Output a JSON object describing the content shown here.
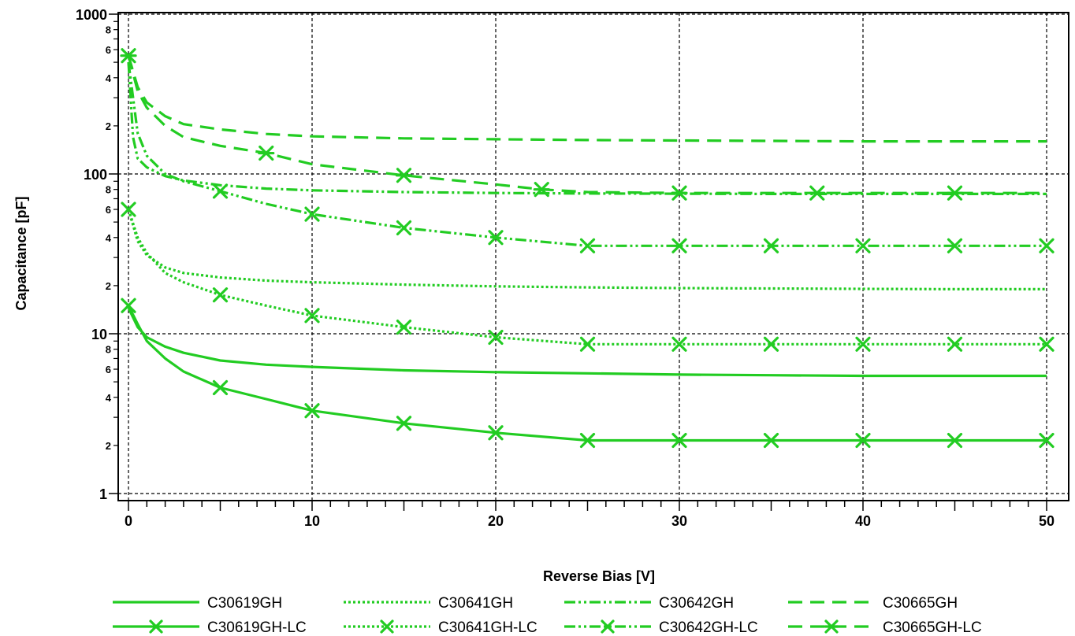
{
  "chart_data": {
    "type": "line",
    "xlabel": "Reverse Bias [V]",
    "ylabel": "Capacitance [pF]",
    "xlim": [
      0,
      50
    ],
    "ylim": [
      1,
      1000
    ],
    "yscale": "log",
    "x_ticks": [
      "0",
      "10",
      "20",
      "30",
      "40",
      "50"
    ],
    "y_major_ticks": [
      "1",
      "10",
      "100",
      "1000"
    ],
    "y_minor_labels": [
      "2",
      "4",
      "6",
      "8"
    ],
    "grid": true,
    "legend_position": "bottom",
    "color": "#22cc22",
    "series": [
      {
        "name": "C30619GH",
        "style": "solid",
        "marker": false,
        "x": [
          0,
          0.5,
          1,
          2,
          3,
          5,
          7.5,
          10,
          15,
          20,
          25,
          30,
          35,
          40,
          45,
          50
        ],
        "y": [
          14.5,
          11,
          9.5,
          8.3,
          7.6,
          6.8,
          6.4,
          6.2,
          5.9,
          5.75,
          5.65,
          5.55,
          5.5,
          5.45,
          5.45,
          5.45
        ]
      },
      {
        "name": "C30619GH-LC",
        "style": "solid",
        "marker": true,
        "x": [
          0,
          0.5,
          1,
          2,
          3,
          5,
          7.5,
          10,
          15,
          20,
          25,
          30,
          35,
          40,
          45,
          50
        ],
        "y": [
          15,
          11.5,
          9,
          7,
          5.8,
          4.6,
          3.9,
          3.3,
          2.75,
          2.4,
          2.15,
          2.15,
          2.15,
          2.15,
          2.15,
          2.15
        ],
        "markers_x": [
          0,
          5,
          10,
          15,
          20,
          25,
          30,
          35,
          40,
          45,
          50
        ]
      },
      {
        "name": "C30641GH",
        "style": "dotted",
        "marker": false,
        "x": [
          0,
          0.5,
          1,
          2,
          3,
          5,
          7.5,
          10,
          15,
          20,
          25,
          30,
          35,
          40,
          45,
          50
        ],
        "y": [
          60,
          38,
          31,
          26,
          24,
          22.5,
          21.5,
          21,
          20.3,
          19.8,
          19.5,
          19.3,
          19.2,
          19.1,
          19,
          19
        ]
      },
      {
        "name": "C30641GH-LC",
        "style": "dotted",
        "marker": true,
        "x": [
          0,
          0.5,
          1,
          2,
          3,
          5,
          7.5,
          10,
          15,
          20,
          25,
          30,
          35,
          40,
          45,
          50
        ],
        "y": [
          60,
          40,
          32,
          24,
          21,
          17.5,
          15,
          13,
          11,
          9.5,
          8.6,
          8.6,
          8.6,
          8.6,
          8.6,
          8.6
        ],
        "markers_x": [
          0,
          5,
          10,
          15,
          20,
          25,
          30,
          35,
          40,
          45,
          50
        ]
      },
      {
        "name": "C30642GH",
        "style": "dash-dot-dot",
        "marker": false,
        "x": [
          0,
          0.25,
          0.5,
          1,
          2,
          3,
          5,
          7.5,
          10,
          15,
          20,
          25,
          30,
          35,
          40,
          45,
          50
        ],
        "y": [
          500,
          170,
          125,
          110,
          97,
          91,
          85,
          81,
          79,
          77,
          76,
          75.5,
          75.2,
          75,
          75,
          75,
          75
        ]
      },
      {
        "name": "C30642GH-LC",
        "style": "dash-dot-dot",
        "marker": true,
        "x": [
          0,
          0.5,
          1,
          2,
          3,
          5,
          7.5,
          10,
          15,
          20,
          25,
          30,
          35,
          40,
          45,
          50
        ],
        "y": [
          500,
          180,
          130,
          100,
          90,
          78,
          65,
          56,
          46,
          40,
          35.5,
          35.5,
          35.5,
          35.5,
          35.5,
          35.5
        ],
        "markers_x": [
          5,
          10,
          15,
          20,
          25,
          30,
          35,
          40,
          45,
          50
        ]
      },
      {
        "name": "C30665GH",
        "style": "dashed",
        "marker": false,
        "x": [
          0,
          0.5,
          1,
          2,
          3,
          5,
          7.5,
          10,
          15,
          20,
          25,
          30,
          35,
          40,
          45,
          50
        ],
        "y": [
          550,
          350,
          280,
          230,
          205,
          190,
          178,
          172,
          167,
          165,
          163,
          162,
          161,
          160,
          160,
          160
        ]
      },
      {
        "name": "C30665GH-LC",
        "style": "dashed",
        "marker": true,
        "x": [
          0,
          0.5,
          1,
          2,
          3,
          5,
          7.5,
          10,
          15,
          20,
          22.5,
          25,
          30,
          35,
          40,
          45,
          50
        ],
        "y": [
          550,
          330,
          260,
          200,
          170,
          150,
          135,
          115,
          98,
          86,
          80,
          77,
          76,
          76,
          76,
          76,
          76
        ],
        "markers_x": [
          0,
          7.5,
          15,
          22.5,
          30,
          37.5,
          45
        ],
        "marker_style": "asterisk"
      }
    ]
  }
}
